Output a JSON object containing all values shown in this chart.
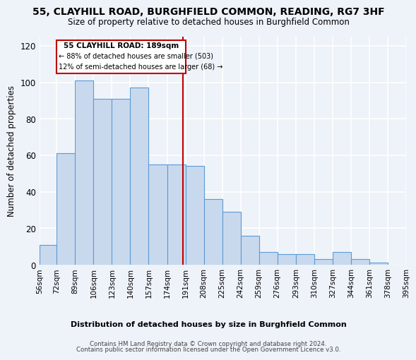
{
  "title": "55, CLAYHILL ROAD, BURGHFIELD COMMON, READING, RG7 3HF",
  "subtitle": "Size of property relative to detached houses in Burghfield Common",
  "xlabel": "Distribution of detached houses by size in Burghfield Common",
  "ylabel": "Number of detached properties",
  "bar_color": "#c9d9ed",
  "bar_edge_color": "#5b9bd5",
  "annotation_text_lines": [
    "55 CLAYHILL ROAD: 189sqm",
    "← 88% of detached houses are smaller (503)",
    "12% of semi-detached houses are larger (68) →"
  ],
  "bin_edges": [
    56,
    72,
    89,
    106,
    123,
    140,
    157,
    174,
    191,
    208,
    225,
    242,
    259,
    276,
    293,
    310,
    327,
    344,
    361,
    378,
    395
  ],
  "bar_heights": [
    11,
    61,
    101,
    91,
    91,
    97,
    55,
    55,
    54,
    36,
    29,
    16,
    7,
    6,
    6,
    3,
    7,
    3,
    1,
    0
  ],
  "ylim": [
    0,
    125
  ],
  "yticks": [
    0,
    20,
    40,
    60,
    80,
    100,
    120
  ],
  "vline_x": 189,
  "vline_color": "#c00000",
  "box_color": "#c00000",
  "footer_line1": "Contains HM Land Registry data © Crown copyright and database right 2024.",
  "footer_line2": "Contains public sector information licensed under the Open Government Licence v3.0.",
  "background_color": "#eef2f9"
}
